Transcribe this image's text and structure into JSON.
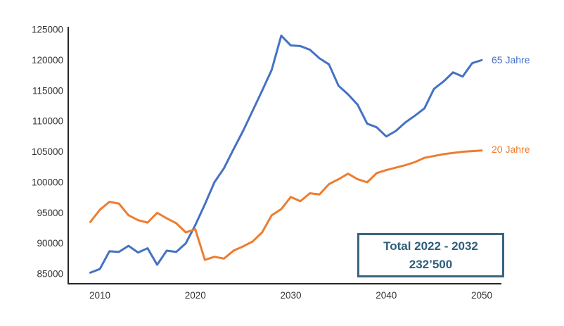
{
  "chart_data": {
    "type": "line",
    "title": "",
    "xlabel": "",
    "ylabel": "",
    "x": [
      2009,
      2010,
      2011,
      2012,
      2013,
      2014,
      2015,
      2016,
      2017,
      2018,
      2019,
      2020,
      2021,
      2022,
      2023,
      2024,
      2025,
      2026,
      2027,
      2028,
      2029,
      2030,
      2031,
      2032,
      2033,
      2034,
      2035,
      2036,
      2037,
      2038,
      2039,
      2040,
      2041,
      2042,
      2043,
      2044,
      2045,
      2046,
      2047,
      2048,
      2049,
      2050
    ],
    "series": [
      {
        "name": "65 Jahre",
        "color": "#4472C4",
        "values": [
          85200,
          85800,
          88700,
          88600,
          89600,
          88500,
          89200,
          86500,
          88800,
          88600,
          90000,
          93000,
          96400,
          100000,
          102300,
          105400,
          108400,
          111700,
          115000,
          118400,
          124000,
          122400,
          122300,
          121700,
          120300,
          119300,
          115800,
          114400,
          112700,
          109600,
          109000,
          107500,
          108400,
          109800,
          110900,
          112100,
          115300,
          116500,
          118000,
          117300,
          119500,
          120000
        ]
      },
      {
        "name": "20 Jahre",
        "color": "#ED7D31",
        "values": [
          93500,
          95500,
          96800,
          96500,
          94600,
          93800,
          93400,
          95000,
          94100,
          93300,
          91800,
          92300,
          87300,
          87800,
          87500,
          88800,
          89500,
          90300,
          91800,
          94600,
          95600,
          97600,
          96900,
          98200,
          98000,
          99700,
          100500,
          101400,
          100500,
          100000,
          101500,
          102000,
          102400,
          102800,
          103300,
          104000,
          104300,
          104600,
          104800,
          105000,
          105100,
          105200
        ]
      }
    ],
    "ylim": [
      85000,
      125000
    ],
    "xlim": [
      2009,
      2050
    ],
    "y_ticks": [
      125000,
      120000,
      115000,
      110000,
      105000,
      100000,
      95000,
      90000,
      85000
    ],
    "x_ticks": [
      2010,
      2020,
      2030,
      2040,
      2050
    ],
    "grid": false,
    "legend_position": "right-end-of-lines"
  },
  "annotation": {
    "line1": "Total 2022 - 2032",
    "line2": "232’500"
  },
  "colors": {
    "series_65": "#4472C4",
    "series_20": "#ED7D31",
    "axis": "#262626",
    "tick_text": "#333333",
    "annotation_border": "#3A647E",
    "annotation_text": "#2E5E7C",
    "background": "#ffffff"
  }
}
